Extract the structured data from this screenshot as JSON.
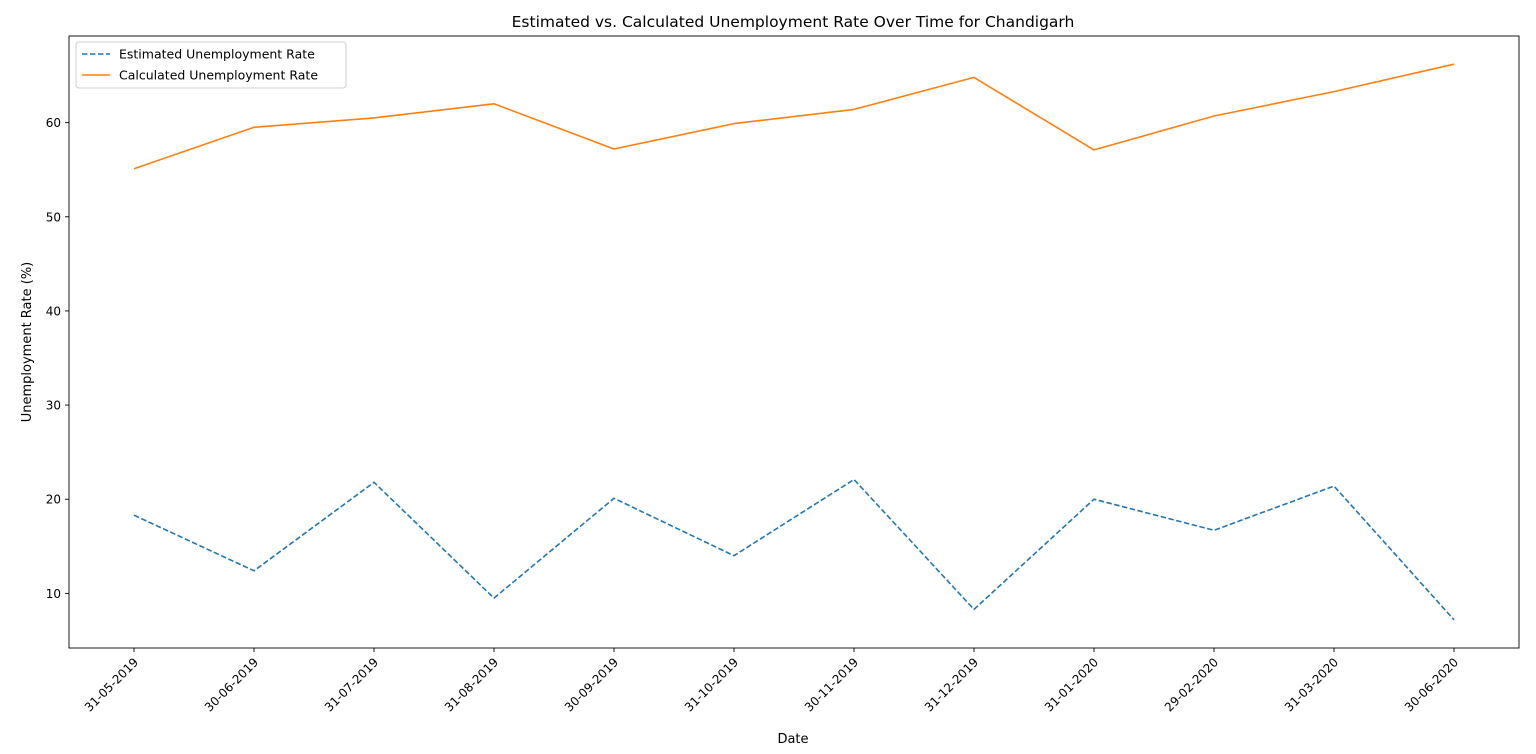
{
  "chart_data": {
    "type": "line",
    "title": "Estimated vs. Calculated Unemployment Rate Over Time for Chandigarh",
    "xlabel": "Date",
    "ylabel": "Unemployment Rate (%)",
    "x": [
      "31-05-2019",
      "30-06-2019",
      "31-07-2019",
      "31-08-2019",
      "30-09-2019",
      "31-10-2019",
      "30-11-2019",
      "31-12-2019",
      "31-01-2020",
      "29-02-2020",
      "31-03-2020",
      "30-06-2020"
    ],
    "series": [
      {
        "name": "Estimated Unemployment Rate",
        "color": "#1f77b4",
        "style": "dashed",
        "values": [
          18.3,
          12.4,
          21.8,
          9.5,
          20.1,
          14.0,
          22.1,
          8.3,
          20.0,
          16.7,
          21.4,
          7.2
        ]
      },
      {
        "name": "Calculated Unemployment Rate",
        "color": "#ff7f0e",
        "style": "solid",
        "values": [
          55.1,
          59.5,
          60.5,
          62.0,
          57.2,
          59.9,
          61.4,
          64.8,
          57.1,
          60.7,
          63.3,
          66.2
        ]
      }
    ],
    "ylim": [
      4.2,
      69.2
    ],
    "yticks": [
      10,
      20,
      30,
      40,
      50,
      60
    ],
    "grid": false,
    "legend": "top-left"
  }
}
